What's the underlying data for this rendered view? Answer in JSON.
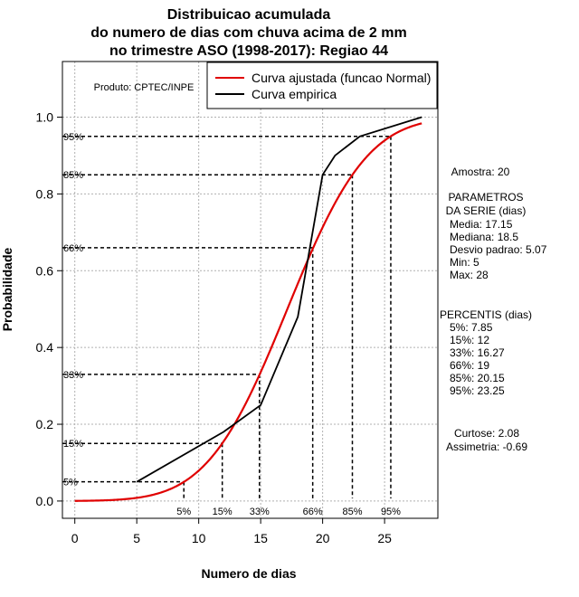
{
  "chart_data": {
    "type": "line",
    "title_lines": [
      "Distribuicao acumulada",
      "do numero de dias com chuva acima de 2 mm",
      "no trimestre ASO (1998-2017): Regiao 44"
    ],
    "xlabel": "Numero de dias",
    "ylabel": "Probabilidade",
    "xlim": [
      -1,
      29.3
    ],
    "ylim": [
      -0.045,
      1.145
    ],
    "xticks": [
      0,
      5,
      10,
      15,
      20,
      25
    ],
    "yticks": [
      0.0,
      0.2,
      0.4,
      0.6,
      0.8,
      1.0
    ],
    "xtick_labels": [
      "0",
      "5",
      "10",
      "15",
      "20",
      "25"
    ],
    "ytick_labels": [
      "0.0",
      "0.2",
      "0.4",
      "0.6",
      "0.8",
      "1.0"
    ],
    "grid": true,
    "product_label": "Produto: CPTEC/INPE",
    "legend": {
      "position": "top-right",
      "entries": [
        {
          "label": "Curva ajustada (funcao Normal)",
          "color": "#e00000"
        },
        {
          "label": "Curva empirica",
          "color": "#000000"
        }
      ]
    },
    "series": [
      {
        "name": "Curva ajustada (funcao Normal)",
        "distribution": "normal",
        "mean": 17.15,
        "sd": 5.07,
        "x_range": [
          0,
          28
        ],
        "color": "#e00000"
      },
      {
        "name": "Curva empirica",
        "color": "#000000",
        "x": [
          5,
          12,
          15,
          18,
          20,
          21,
          23,
          28
        ],
        "y": [
          0.05,
          0.18,
          0.25,
          0.48,
          0.85,
          0.9,
          0.95,
          1.0
        ]
      }
    ],
    "percentile_lines": [
      {
        "label": "5%",
        "p": 0.05,
        "x": 8.8
      },
      {
        "label": "15%",
        "p": 0.15,
        "x": 11.9
      },
      {
        "label": "33%",
        "p": 0.33,
        "x": 14.9
      },
      {
        "label": "66%",
        "p": 0.66,
        "x": 19.2
      },
      {
        "label": "85%",
        "p": 0.85,
        "x": 22.4
      },
      {
        "label": "95%",
        "p": 0.95,
        "x": 25.5
      }
    ]
  },
  "sidebar": {
    "amostra": "Amostra: 20",
    "parametros_title_1": "PARAMETROS",
    "parametros_title_2": "DA SERIE (dias)",
    "media": "Media: 17.15",
    "mediana": "Mediana: 18.5",
    "desvio": "Desvio padrao: 5.07",
    "min": "Min: 5",
    "max": "Max: 28",
    "percentis_title": "PERCENTIS (dias)",
    "p5": "5%: 7.85",
    "p15": "15%: 12",
    "p33": "33%: 16.27",
    "p66": "66%: 19",
    "p85": "85%: 20.15",
    "p95": "95%: 23.25",
    "curtose": "Curtose: 2.08",
    "assimetria": "Assimetria: -0.69"
  }
}
